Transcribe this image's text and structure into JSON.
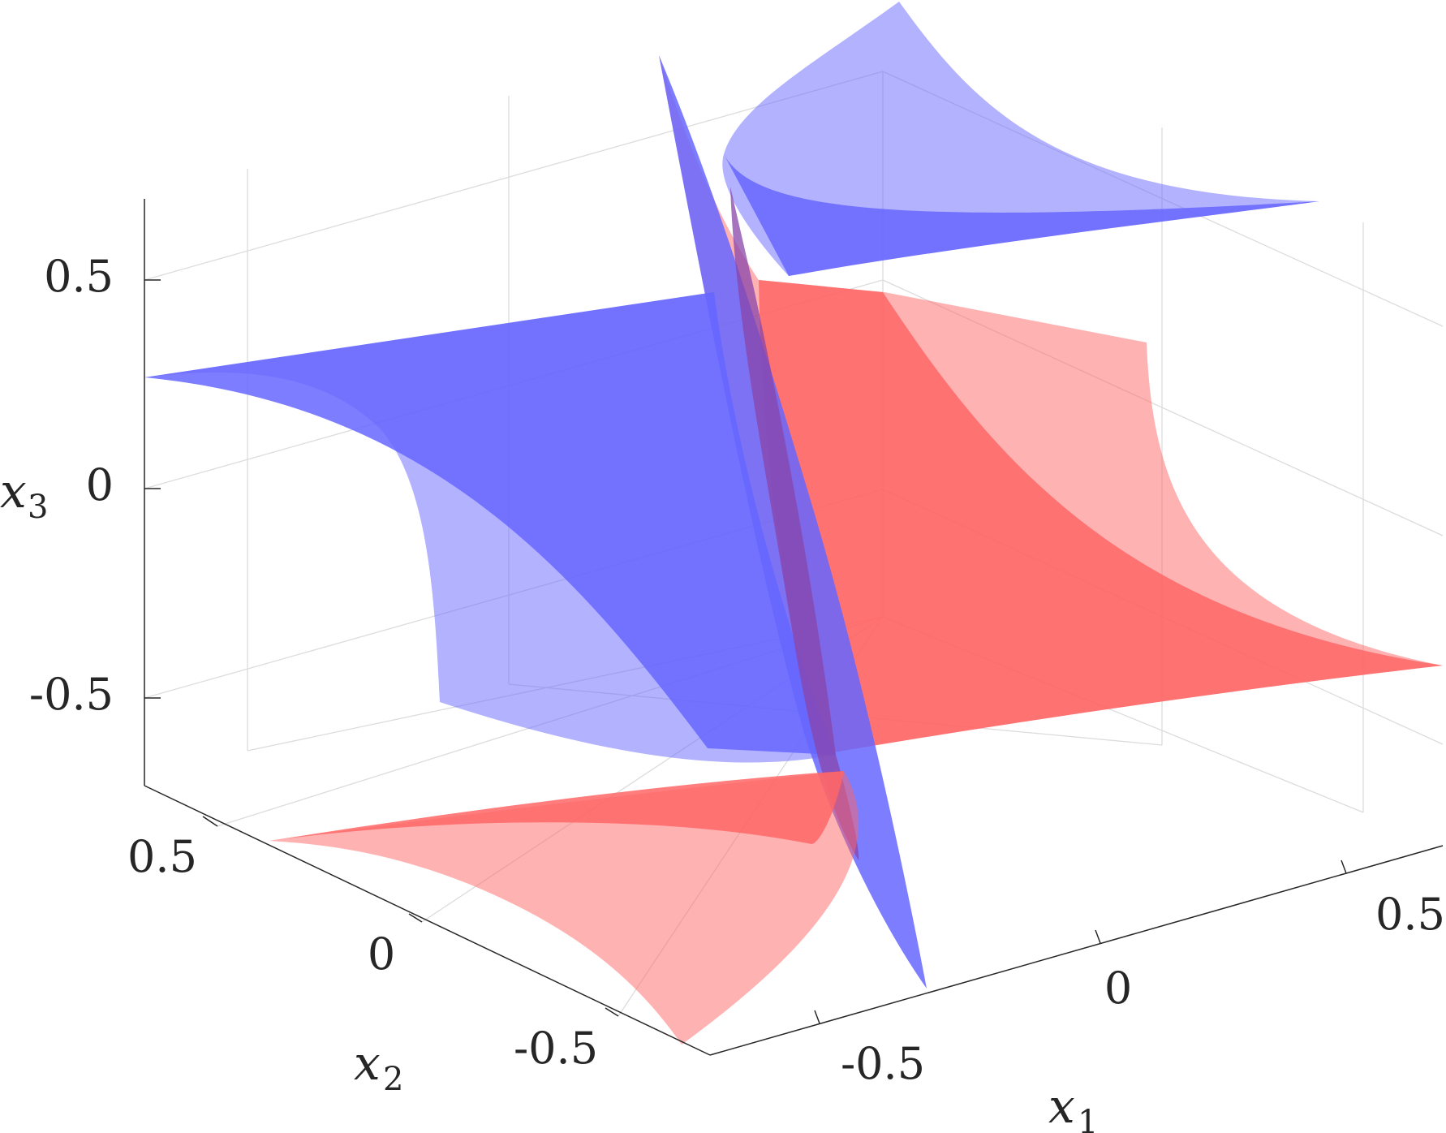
{
  "chart_data": {
    "type": "surface3d",
    "colors": {
      "blue": "#6666ff",
      "red": "#ff6666",
      "axis": "#262626",
      "grid": "#dcdcdc"
    },
    "x1": {
      "ticks": [
        "-0.5",
        "0",
        "0.5"
      ]
    },
    "x2": {
      "ticks": [
        "-0.5",
        "0",
        "0.5"
      ]
    },
    "x3": {
      "ticks": [
        "-0.5",
        "0",
        "0.5"
      ]
    },
    "xlim": [
      -0.75,
      0.75
    ],
    "ylim": [
      -0.75,
      0.75
    ],
    "zlim": [
      -0.75,
      0.75
    ],
    "labels": {
      "x1": {
        "base": "x",
        "sub": "1"
      },
      "x2": {
        "base": "x",
        "sub": "2"
      },
      "x3": {
        "base": "x",
        "sub": "3"
      }
    },
    "series": [
      {
        "color": "blue",
        "surfaces": [
          "upper-curved-sheet",
          "left-curved-sheet",
          "diagonal-plane"
        ]
      },
      {
        "color": "red",
        "surfaces": [
          "right-curved-sheet",
          "lower-curved-sheet",
          "diagonal-plane"
        ]
      }
    ],
    "grid": true,
    "alpha_light": 0.5,
    "alpha_dark": 0.85
  }
}
